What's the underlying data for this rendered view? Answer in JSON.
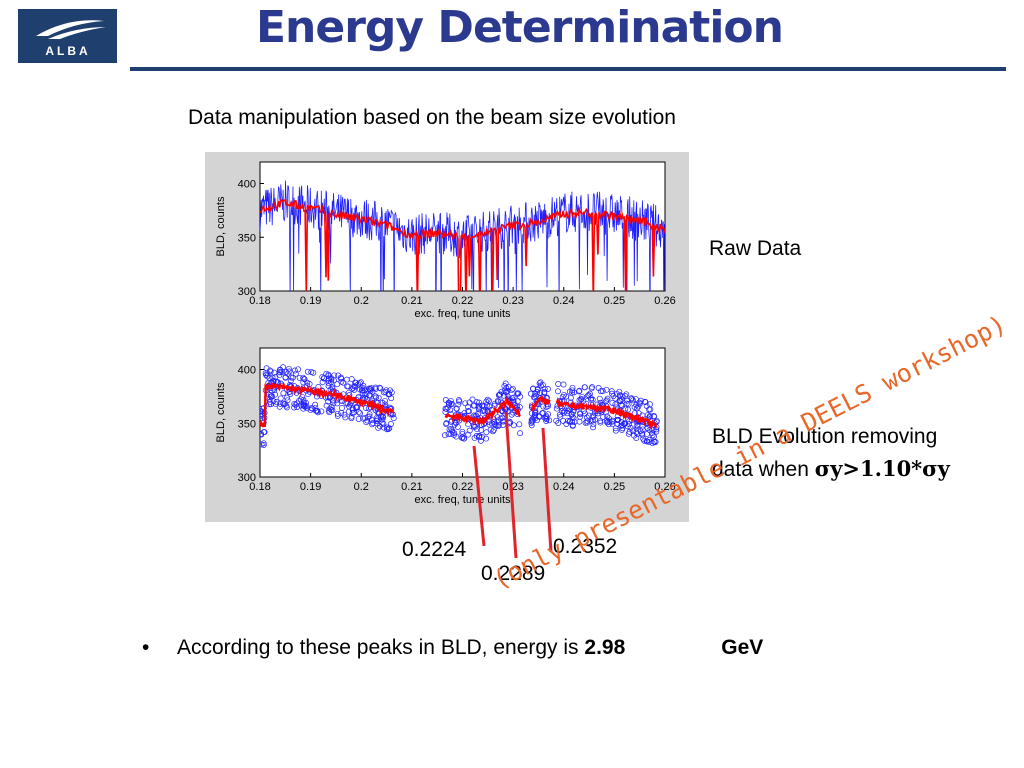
{
  "header": {
    "logo_text": "ALBA",
    "title": "Energy Determination"
  },
  "subtitle": "Data manipulation based on the beam size evolution",
  "side_labels": {
    "raw": "Raw Data",
    "bld_line1": "BLD Evolution removing",
    "bld_line2_prefix": "data when ",
    "bld_formula": "σy>1.10*σy"
  },
  "peaks": [
    "0.2224",
    "0.2289",
    "0.2352"
  ],
  "conclusion": {
    "bullet": "•",
    "text": "According to these peaks in BLD, energy is ",
    "value_visible": "2.98",
    "value_tail": "GeV"
  },
  "stamp": "(only presentable in a DEELS workshop)",
  "colors": {
    "title": "#2b3a8f",
    "rule": "#1f3f6e",
    "series_raw": "#1e1eff",
    "series_smooth": "#ff0000",
    "arrow": "#e0242b",
    "stamp": "#e8672a",
    "figure_bg": "#d4d4d4"
  },
  "chart_data": [
    {
      "type": "line",
      "xlabel": "exc. freq, tune units",
      "ylabel": "BLD, counts",
      "xlim": [
        0.18,
        0.26
      ],
      "ylim": [
        300,
        420
      ],
      "x_ticks": [
        "0.18",
        "0.19",
        "0.2",
        "0.21",
        "0.22",
        "0.23",
        "0.24",
        "0.25",
        "0.26"
      ],
      "y_ticks": [
        "300",
        "350",
        "400"
      ],
      "series": [
        {
          "color": "#1e1eff",
          "x": [
            0.18,
            0.185,
            0.19,
            0.195,
            0.2,
            0.205,
            0.21,
            0.215,
            0.22,
            0.225,
            0.23,
            0.235,
            0.24,
            0.245,
            0.25,
            0.255,
            0.26
          ],
          "y": [
            375,
            383,
            378,
            372,
            368,
            362,
            352,
            355,
            350,
            356,
            362,
            365,
            373,
            374,
            371,
            366,
            358
          ]
        },
        {
          "color": "#ff0000",
          "x": [
            0.18,
            0.185,
            0.19,
            0.195,
            0.2,
            0.205,
            0.21,
            0.215,
            0.22,
            0.225,
            0.23,
            0.235,
            0.24,
            0.245,
            0.25,
            0.255,
            0.26
          ],
          "y": [
            376,
            382,
            377,
            371,
            367,
            361,
            352,
            354,
            350,
            355,
            361,
            364,
            372,
            373,
            370,
            365,
            357
          ]
        }
      ]
    },
    {
      "type": "scatter",
      "xlabel": "exc. freq, tune units",
      "ylabel": "BLD, counts",
      "xlim": [
        0.18,
        0.26
      ],
      "ylim": [
        300,
        420
      ],
      "x_ticks": [
        "0.18",
        "0.19",
        "0.2",
        "0.21",
        "0.22",
        "0.23",
        "0.24",
        "0.25",
        "0.26"
      ],
      "y_ticks": [
        "300",
        "350",
        "400"
      ],
      "series": [
        {
          "color": "#ff0000",
          "x": [
            0.181,
            0.185,
            0.19,
            0.195,
            0.2,
            0.205,
            0.216,
            0.22,
            0.224,
            0.2289,
            0.232,
            0.2352,
            0.24,
            0.245,
            0.25,
            0.255,
            0.258
          ],
          "y": [
            385,
            383,
            380,
            376,
            370,
            362,
            358,
            355,
            352,
            370,
            355,
            372,
            367,
            365,
            362,
            354,
            348
          ]
        }
      ]
    }
  ]
}
